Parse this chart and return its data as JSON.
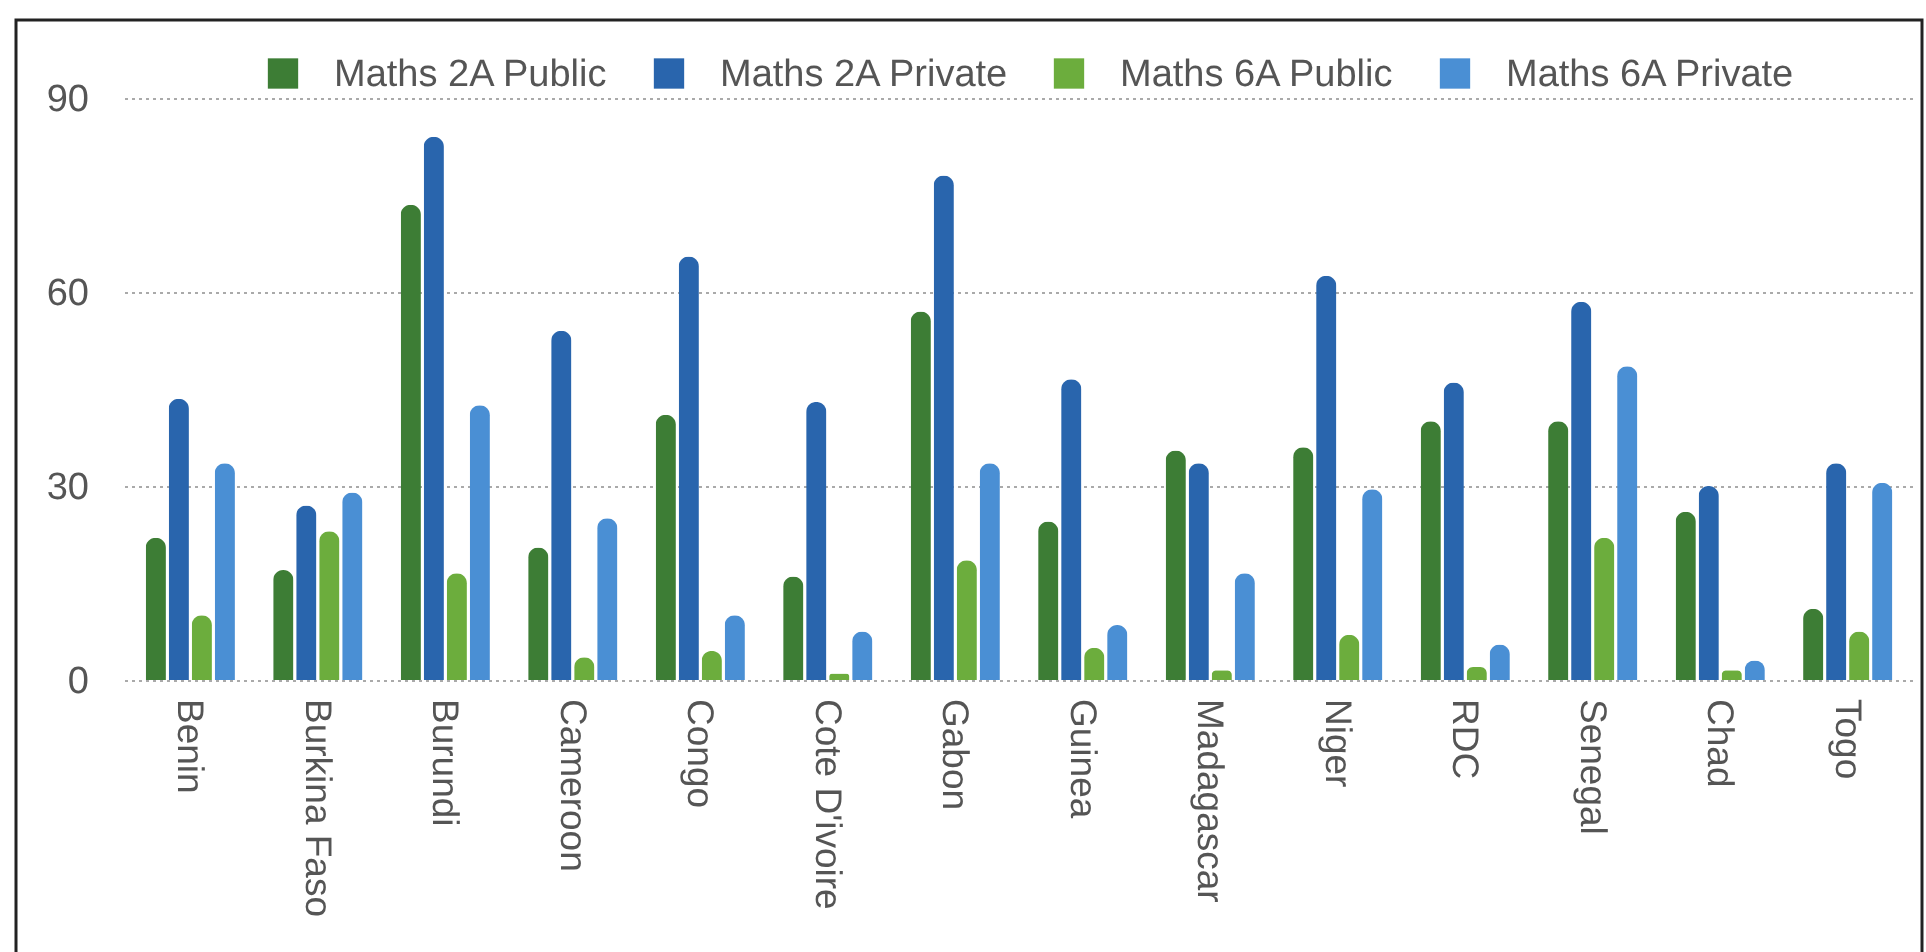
{
  "chart_data": {
    "type": "bar",
    "categories": [
      "Benin",
      "Burkina Faso",
      "Burundi",
      "Cameroon",
      "Congo",
      "Cote D'ivoire",
      "Gabon",
      "Guinea",
      "Madagascar",
      "Niger",
      "RDC",
      "Senegal",
      "Chad",
      "Togo"
    ],
    "series": [
      {
        "name": "Maths 2A Public",
        "color": "#3d7d35",
        "values": [
          22,
          17,
          73.5,
          20.5,
          41,
          16,
          57,
          24.5,
          35.5,
          36,
          40,
          40,
          26,
          11
        ]
      },
      {
        "name": "Maths 2A Private",
        "color": "#2965ad",
        "values": [
          43.5,
          27,
          84,
          54,
          65.5,
          43,
          78,
          46.5,
          33.5,
          62.5,
          46,
          58.5,
          30,
          33.5
        ]
      },
      {
        "name": "Maths 6A Public",
        "color": "#6cad3d",
        "values": [
          10,
          23,
          16.5,
          3.5,
          4.5,
          1,
          18.5,
          5,
          1.5,
          7,
          2,
          22,
          1.5,
          7.5
        ]
      },
      {
        "name": "Maths 6A Private",
        "color": "#4a8fd4",
        "values": [
          33.5,
          29,
          42.5,
          25,
          10,
          7.5,
          33.5,
          8.5,
          16.5,
          29.5,
          5.5,
          48.5,
          3,
          30.5
        ]
      }
    ],
    "ylim": [
      0,
      90
    ],
    "yticks": [
      0,
      30,
      60,
      90
    ],
    "grid": "y",
    "legend": "top"
  }
}
